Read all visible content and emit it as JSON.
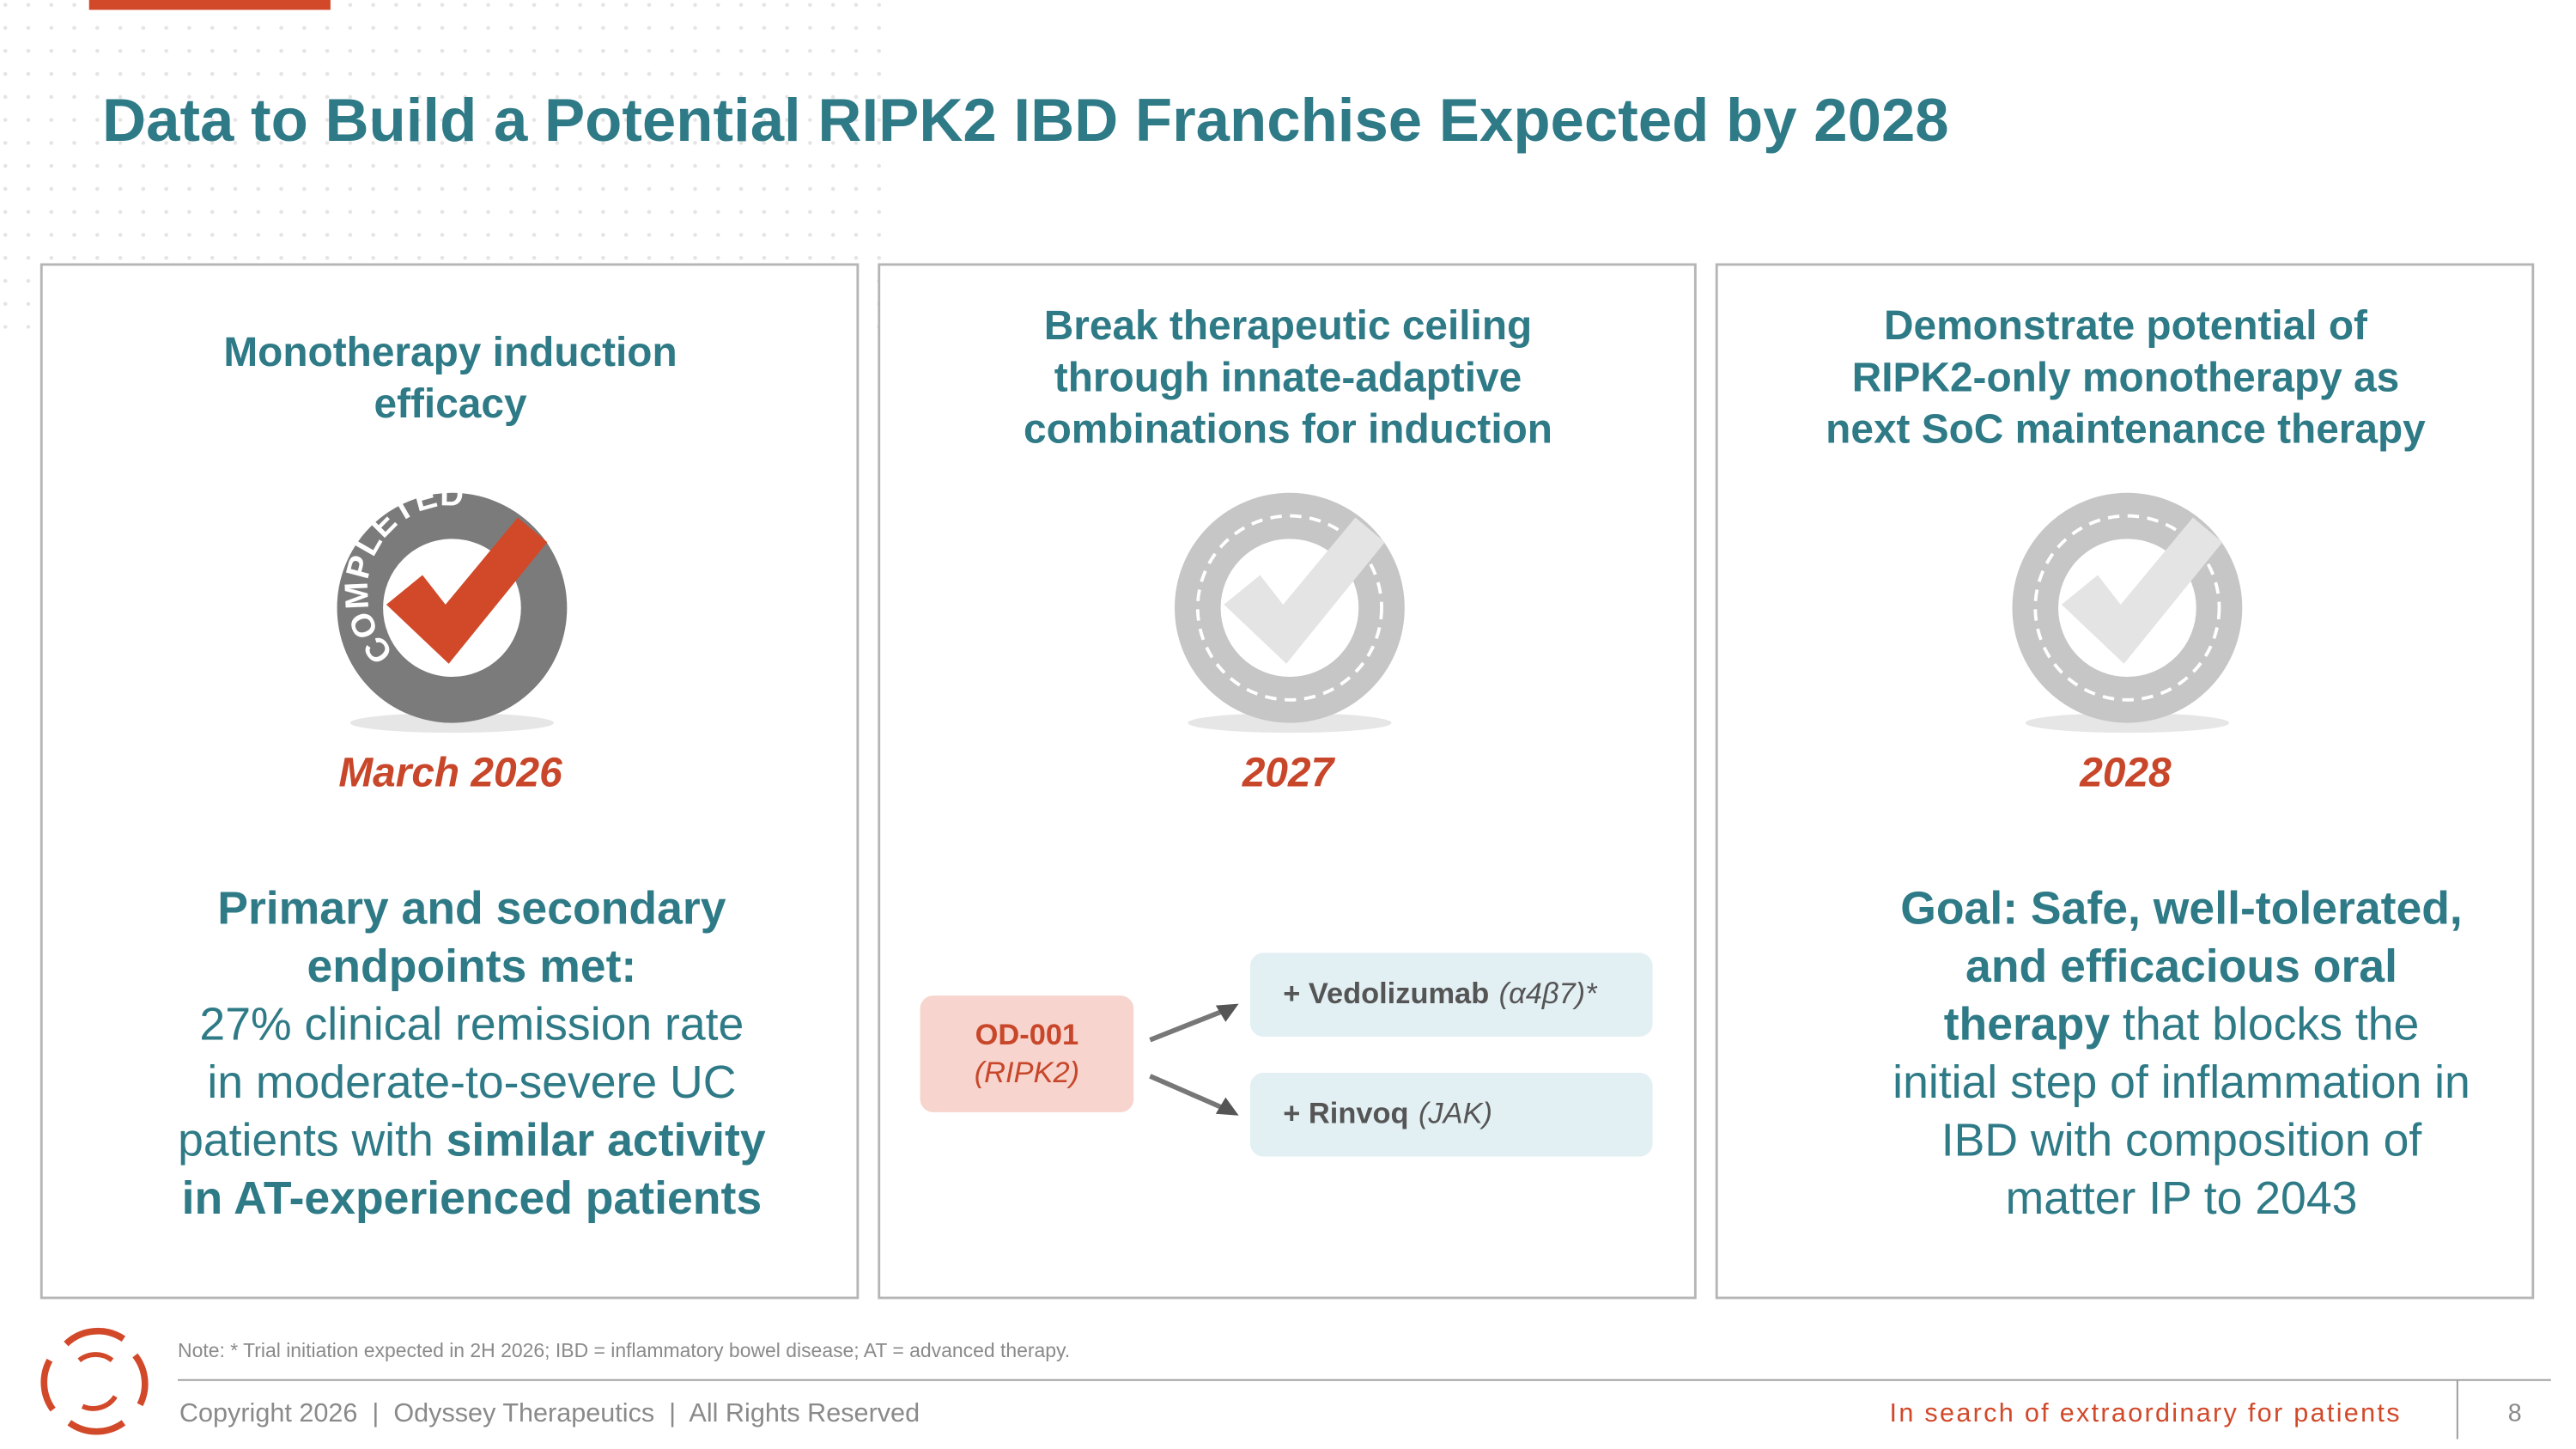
{
  "header": {
    "title": "Data to Build a Potential RIPK2 IBD Franchise Expected by 2028"
  },
  "panels": [
    {
      "heading": [
        "Monotherapy induction",
        "efficacy"
      ],
      "icon": "completed",
      "icon_label": "COMPLETED",
      "date": "March 2026",
      "body": [
        [
          {
            "text": "Primary and secondary",
            "bold": true
          }
        ],
        [
          {
            "text": "endpoints met:",
            "bold": true
          }
        ],
        [
          {
            "text": "27% clinical remission rate",
            "bold": false
          }
        ],
        [
          {
            "text": "in moderate-to-severe UC",
            "bold": false
          }
        ],
        [
          {
            "text": "patients with ",
            "bold": false
          },
          {
            "text": "similar activity",
            "bold": true
          }
        ],
        [
          {
            "text": "in AT-experienced patients",
            "bold": true
          }
        ]
      ]
    },
    {
      "heading": [
        "Break therapeutic ceiling",
        "through innate-adaptive",
        "combinations for induction"
      ],
      "icon": "pending",
      "date": "2027",
      "diagram": {
        "source": {
          "name": "OD-001",
          "target": "(RIPK2)"
        },
        "combos": [
          {
            "name": "+ Vedolizumab",
            "target": "(α4β7)*"
          },
          {
            "name": "+ Rinvoq",
            "target": "(JAK)"
          }
        ]
      }
    },
    {
      "heading": [
        "Demonstrate potential of",
        "RIPK2-only monotherapy as",
        "next SoC maintenance therapy"
      ],
      "icon": "pending",
      "date": "2028",
      "body": [
        [
          {
            "text": "Goal: Safe, well-tolerated,",
            "bold": true
          }
        ],
        [
          {
            "text": "and efficacious oral",
            "bold": true
          }
        ],
        [
          {
            "text": "therapy",
            "bold": true
          },
          {
            "text": " that blocks the",
            "bold": false
          }
        ],
        [
          {
            "text": "initial step of inflammation in",
            "bold": false
          }
        ],
        [
          {
            "text": "IBD with composition of",
            "bold": false
          }
        ],
        [
          {
            "text": "matter IP to 2043",
            "bold": false
          }
        ]
      ]
    }
  ],
  "footer": {
    "note": "Note: * Trial initiation expected in 2H 2026; IBD = inflammatory bowel disease; AT = advanced therapy.",
    "copyright": "Copyright 2026  |  Odyssey Therapeutics  |  All Rights Reserved",
    "tagline": "In search of extraordinary for patients",
    "page_number": "8"
  }
}
